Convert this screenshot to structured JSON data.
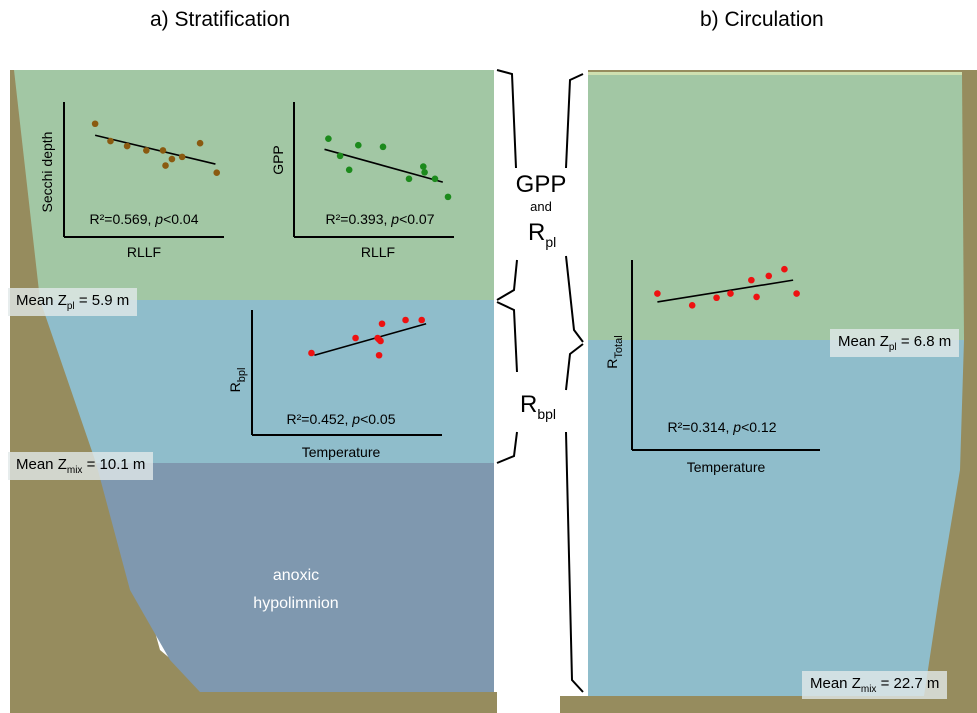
{
  "titles": {
    "a": "a) Stratification",
    "b": "b) Circulation"
  },
  "colors": {
    "epilimnion_green": "#a2c7a4",
    "metalimnion_blue": "#8fbdcb",
    "hypolimnion_gray_blue": "#7f98af",
    "sediment_brown": "#968c5e",
    "secchi_points": "#8a5a10",
    "gpp_points": "#1c8a1c",
    "resp_points": "#ee1111"
  },
  "labels": {
    "strat_zpl_prefix": "Mean Z",
    "strat_zpl_sub": "pl",
    "strat_zpl_value": " = 5.9 m",
    "strat_zmix_prefix": "Mean Z",
    "strat_zmix_sub": "mix",
    "strat_zmix_value": " = 10.1 m",
    "circ_zpl_prefix": "Mean Z",
    "circ_zpl_sub": "pl",
    "circ_zpl_value": " = 6.8 m",
    "circ_zmix_prefix": "Mean Z",
    "circ_zmix_sub": "mix",
    "circ_zmix_value": " = 22.7 m",
    "anoxic_line1": "anoxic",
    "anoxic_line2": "hypolimnion",
    "center_gpp": "GPP",
    "center_and": "and",
    "center_r": "R",
    "center_r_sub": "pl",
    "center_rbpl": "R",
    "center_rbpl_sub": "bpl"
  },
  "chart_data": [
    {
      "type": "scatter",
      "ylabel": "Secchi depth",
      "xlabel": "RLLF",
      "stat_prefix": "R²=0.569, ",
      "stat_p": "p",
      "stat_suffix": "<0.04",
      "points": [
        [
          0.04,
          0.92
        ],
        [
          0.16,
          0.68
        ],
        [
          0.29,
          0.61
        ],
        [
          0.44,
          0.55
        ],
        [
          0.57,
          0.55
        ],
        [
          0.64,
          0.43
        ],
        [
          0.72,
          0.46
        ],
        [
          0.86,
          0.65
        ],
        [
          0.99,
          0.24
        ],
        [
          0.59,
          0.34
        ]
      ],
      "trend": [
        [
          0.04,
          0.76
        ],
        [
          0.98,
          0.36
        ]
      ]
    },
    {
      "type": "scatter",
      "ylabel": "GPP",
      "xlabel": "RLLF",
      "stat_prefix": "R²=0.393, ",
      "stat_p": "p",
      "stat_suffix": "<0.07",
      "points": [
        [
          0.08,
          0.87
        ],
        [
          0.17,
          0.66
        ],
        [
          0.31,
          0.79
        ],
        [
          0.5,
          0.77
        ],
        [
          0.7,
          0.38
        ],
        [
          0.81,
          0.53
        ],
        [
          0.82,
          0.46
        ],
        [
          0.9,
          0.38
        ],
        [
          1.0,
          0.16
        ],
        [
          0.24,
          0.49
        ]
      ],
      "trend": [
        [
          0.05,
          0.74
        ],
        [
          0.96,
          0.34
        ]
      ]
    },
    {
      "type": "scatter",
      "ylabel": "R",
      "ylabel_sub": "bpl",
      "xlabel": "Temperature",
      "stat_prefix": "R²=0.452, ",
      "stat_p": "p",
      "stat_suffix": "<0.05",
      "points": [
        [
          0.18,
          0.56
        ],
        [
          0.48,
          0.76
        ],
        [
          0.63,
          0.76
        ],
        [
          0.64,
          0.74
        ],
        [
          0.65,
          0.72
        ],
        [
          0.64,
          0.53
        ],
        [
          0.66,
          0.95
        ],
        [
          0.82,
          1.0
        ],
        [
          0.93,
          1.0
        ]
      ],
      "trend": [
        [
          0.2,
          0.53
        ],
        [
          0.96,
          0.95
        ]
      ]
    },
    {
      "type": "scatter",
      "ylabel": "R",
      "ylabel_sub": "Total",
      "xlabel": "Temperature",
      "stat_prefix": "R²=0.314, ",
      "stat_p": "p",
      "stat_suffix": "<0.12",
      "points": [
        [
          0.1,
          0.66
        ],
        [
          0.3,
          0.52
        ],
        [
          0.44,
          0.61
        ],
        [
          0.52,
          0.66
        ],
        [
          0.64,
          0.82
        ],
        [
          0.67,
          0.62
        ],
        [
          0.74,
          0.87
        ],
        [
          0.83,
          0.95
        ],
        [
          0.9,
          0.66
        ]
      ],
      "trend": [
        [
          0.1,
          0.56
        ],
        [
          0.88,
          0.82
        ]
      ]
    }
  ]
}
